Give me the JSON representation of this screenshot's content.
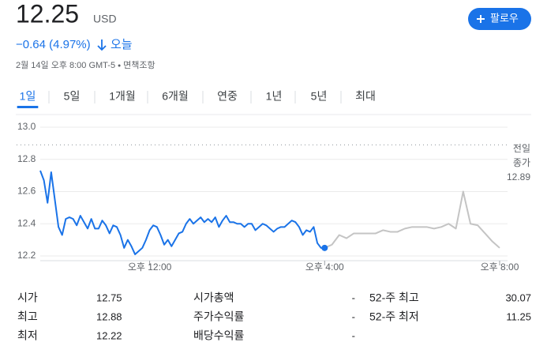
{
  "header": {
    "price": 12.25,
    "currency": "USD",
    "change": "−0.64 (4.97%)",
    "period": "오늘",
    "date": "2월 14일 오후 8:00 GMT-5",
    "disclaimer": "면책조항",
    "follow": "팔로우"
  },
  "tabs": [
    "1일",
    "5일",
    "1개월",
    "6개월",
    "연중",
    "1년",
    "5년",
    "최대"
  ],
  "selected_tab": 0,
  "chart_data": {
    "type": "line",
    "xlim": [
      570,
      1200
    ],
    "xticks": [
      {
        "value": 720,
        "label": "오후 12:00"
      },
      {
        "value": 960,
        "label": "오후 4:00"
      },
      {
        "value": 1200,
        "label": "오후 8:00"
      }
    ],
    "ylim": [
      12.2,
      13.0
    ],
    "yticks": [
      {
        "value": 13,
        "label": "13.0"
      },
      12.8,
      12.6,
      12.4,
      12.2
    ],
    "grid": true,
    "reference": {
      "lines": [
        "전일",
        "종가"
      ],
      "value": 12.89
    },
    "series": [
      {
        "color": "#1a73e8",
        "x": [
          570,
          575,
          580,
          585,
          590,
          595,
          600,
          605,
          610,
          615,
          620,
          625,
          630,
          635,
          640,
          645,
          650,
          655,
          660,
          665,
          670,
          675,
          680,
          685,
          690,
          695,
          700,
          705,
          710,
          715,
          720,
          725,
          730,
          735,
          740,
          745,
          750,
          755,
          760,
          765,
          770,
          775,
          780,
          785,
          790,
          795,
          800,
          805,
          810,
          815,
          820,
          825,
          830,
          835,
          840,
          845,
          850,
          855,
          860,
          865,
          870,
          875,
          880,
          885,
          890,
          895,
          900,
          905,
          910,
          915,
          920,
          925,
          930,
          935,
          940,
          945,
          950,
          955,
          960
        ],
        "values": [
          12.73,
          12.67,
          12.53,
          12.72,
          12.55,
          12.38,
          12.33,
          12.43,
          12.44,
          12.43,
          12.39,
          12.45,
          12.41,
          12.37,
          12.43,
          12.37,
          12.37,
          12.42,
          12.39,
          12.34,
          12.39,
          12.38,
          12.33,
          12.25,
          12.3,
          12.26,
          12.21,
          12.23,
          12.25,
          12.3,
          12.36,
          12.39,
          12.38,
          12.33,
          12.27,
          12.3,
          12.26,
          12.3,
          12.34,
          12.35,
          12.4,
          12.43,
          12.4,
          12.42,
          12.44,
          12.41,
          12.43,
          12.41,
          12.44,
          12.38,
          12.42,
          12.45,
          12.41,
          12.41,
          12.4,
          12.4,
          12.38,
          12.4,
          12.4,
          12.36,
          12.38,
          12.4,
          12.39,
          12.37,
          12.35,
          12.37,
          12.38,
          12.38,
          12.4,
          12.42,
          12.41,
          12.38,
          12.33,
          12.36,
          12.35,
          12.38,
          12.28,
          12.25,
          12.25
        ]
      },
      {
        "color": "#c4c4c4",
        "x": [
          960,
          970,
          980,
          990,
          1000,
          1010,
          1020,
          1030,
          1040,
          1050,
          1060,
          1070,
          1080,
          1090,
          1100,
          1110,
          1120,
          1130,
          1140,
          1150,
          1160,
          1170,
          1180,
          1190,
          1200
        ],
        "values": [
          12.25,
          12.27,
          12.33,
          12.31,
          12.34,
          12.34,
          12.34,
          12.34,
          12.36,
          12.35,
          12.35,
          12.37,
          12.38,
          12.38,
          12.38,
          12.37,
          12.38,
          12.4,
          12.37,
          12.6,
          12.4,
          12.39,
          12.34,
          12.29,
          12.25
        ]
      }
    ]
  },
  "stats": [
    [
      [
        "시가",
        12.75
      ],
      [
        "시가총액",
        "-"
      ],
      [
        "52-주 최고",
        30.07
      ]
    ],
    [
      [
        "최고",
        12.88
      ],
      [
        "주가수익률",
        "-"
      ],
      [
        "52-주 최저",
        11.25
      ]
    ],
    [
      [
        "최저",
        12.22
      ],
      [
        "배당수익률",
        "-"
      ]
    ]
  ]
}
